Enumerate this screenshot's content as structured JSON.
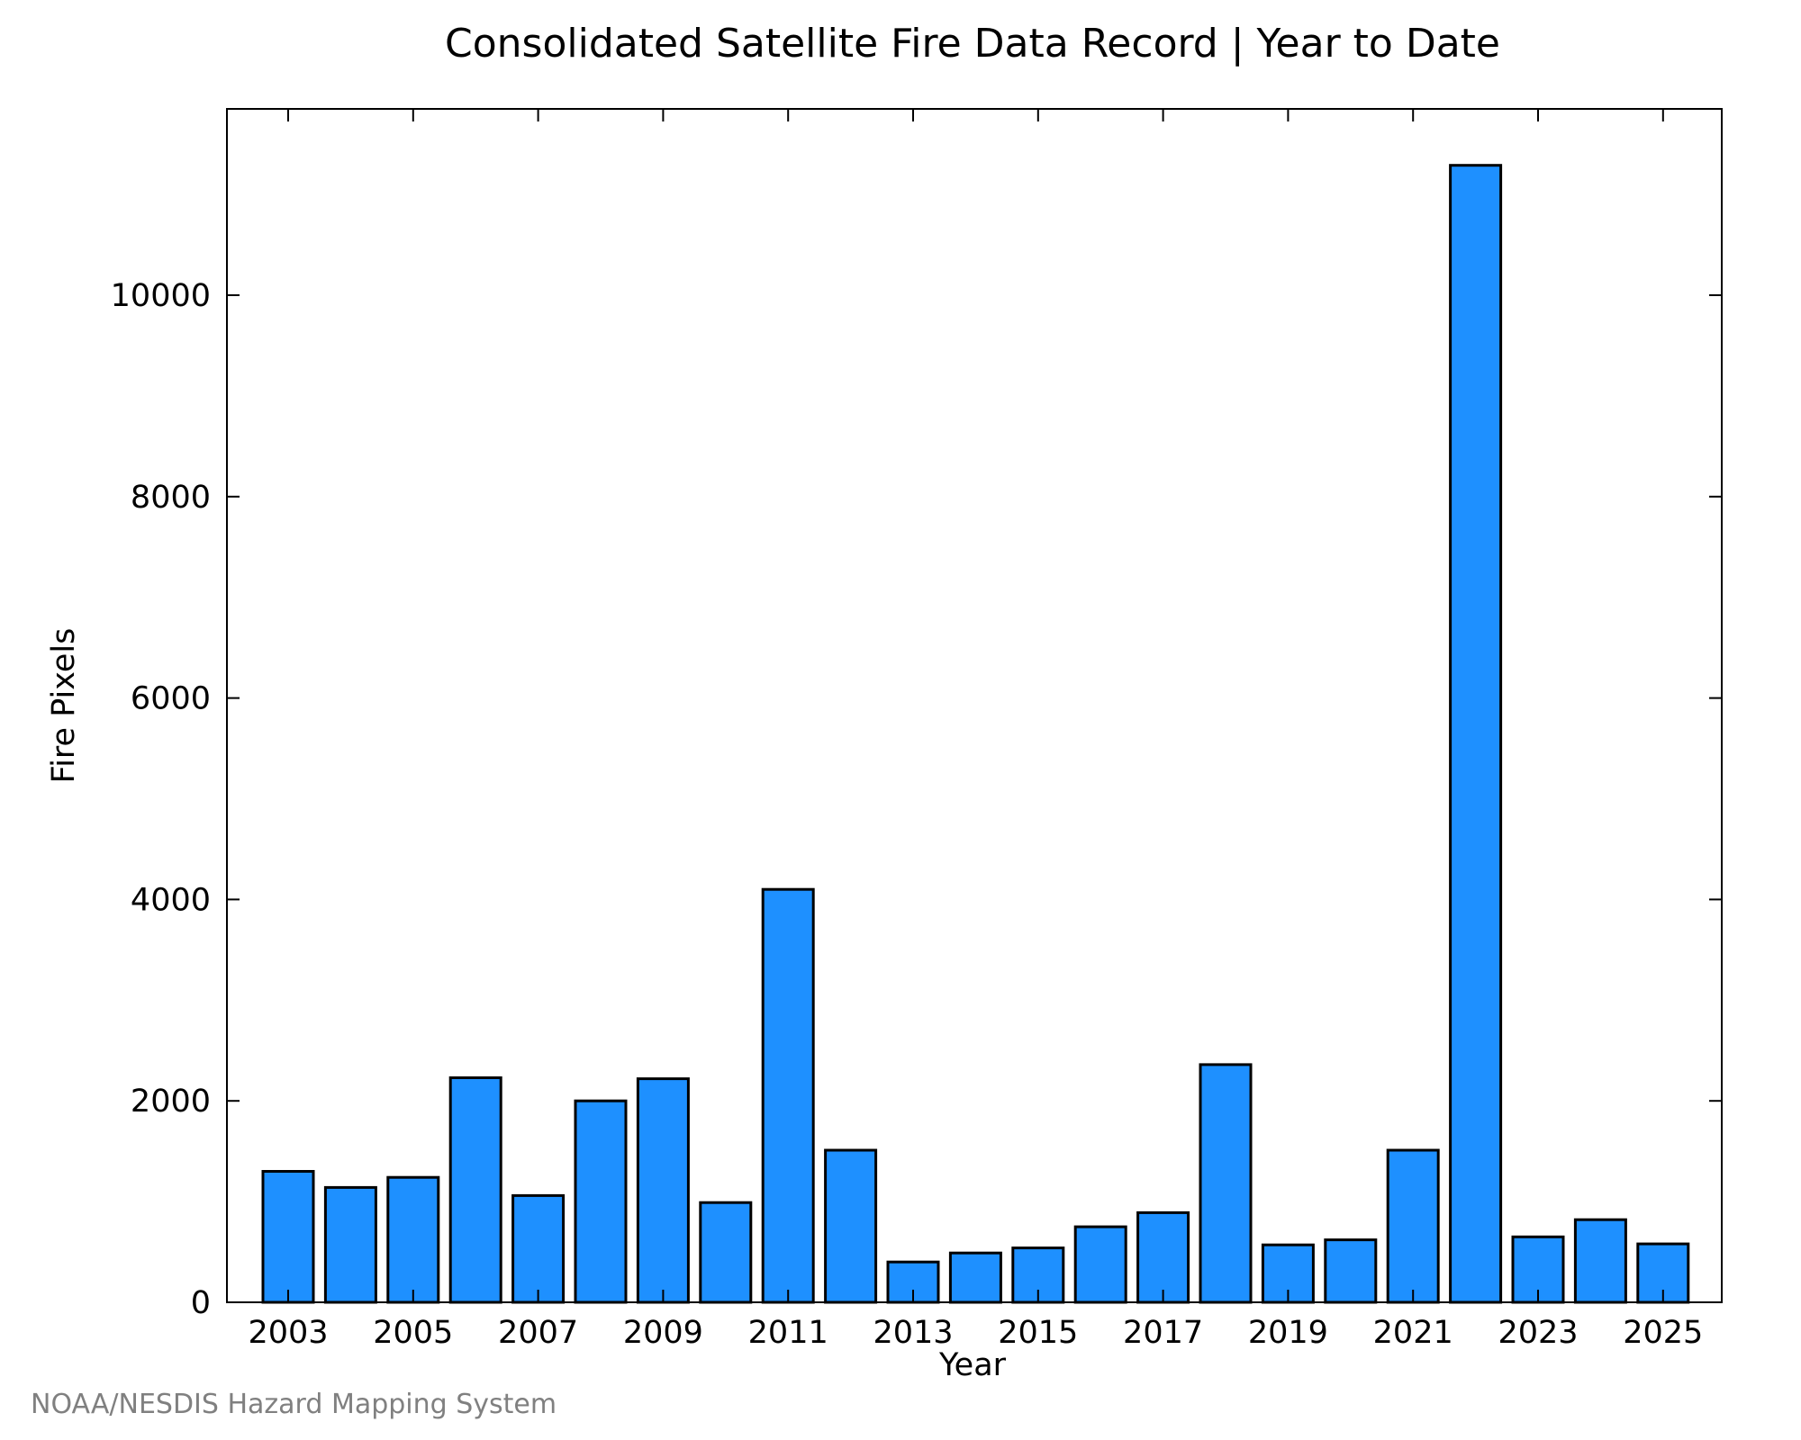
{
  "chart_data": {
    "type": "bar",
    "title": "Consolidated Satellite Fire Data Record | Year to Date",
    "xlabel": "Year",
    "ylabel": "Fire Pixels",
    "categories": [
      "2003",
      "2004",
      "2005",
      "2006",
      "2007",
      "2008",
      "2009",
      "2010",
      "2011",
      "2012",
      "2013",
      "2014",
      "2015",
      "2016",
      "2017",
      "2018",
      "2019",
      "2020",
      "2021",
      "2022",
      "2023",
      "2024",
      "2025"
    ],
    "x_tick_labels": [
      "2003",
      "2005",
      "2007",
      "2009",
      "2011",
      "2013",
      "2015",
      "2017",
      "2019",
      "2021",
      "2023",
      "2025"
    ],
    "values": [
      1300,
      1140,
      1240,
      2230,
      1060,
      2000,
      2220,
      990,
      4100,
      1510,
      400,
      490,
      540,
      750,
      890,
      2360,
      570,
      620,
      1510,
      11290,
      650,
      820,
      580
    ],
    "ylim": [
      0,
      11850
    ],
    "y_ticks": [
      0,
      2000,
      4000,
      6000,
      8000,
      10000
    ],
    "grid": false,
    "legend": "none",
    "bar_color": "#1e90ff",
    "bar_edge_color": "#000000"
  },
  "credit": "NOAA/NESDIS Hazard Mapping System"
}
